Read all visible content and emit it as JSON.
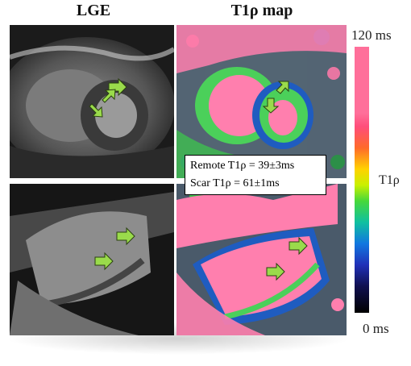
{
  "headers": {
    "lge": "LGE",
    "t1rho": "T1ρ map"
  },
  "values_box": {
    "remote": "Remote T1ρ = 39±3ms",
    "scar": "Scar T1ρ = 61±1ms"
  },
  "colorbar": {
    "max_label": "120 ms",
    "min_label": "0 ms",
    "title": "T1ρ"
  },
  "colors": {
    "arrow": "#9adb4b",
    "map_pink": "#ff7fae",
    "map_green": "#4bd05a",
    "map_blue": "#1f5cc0"
  }
}
